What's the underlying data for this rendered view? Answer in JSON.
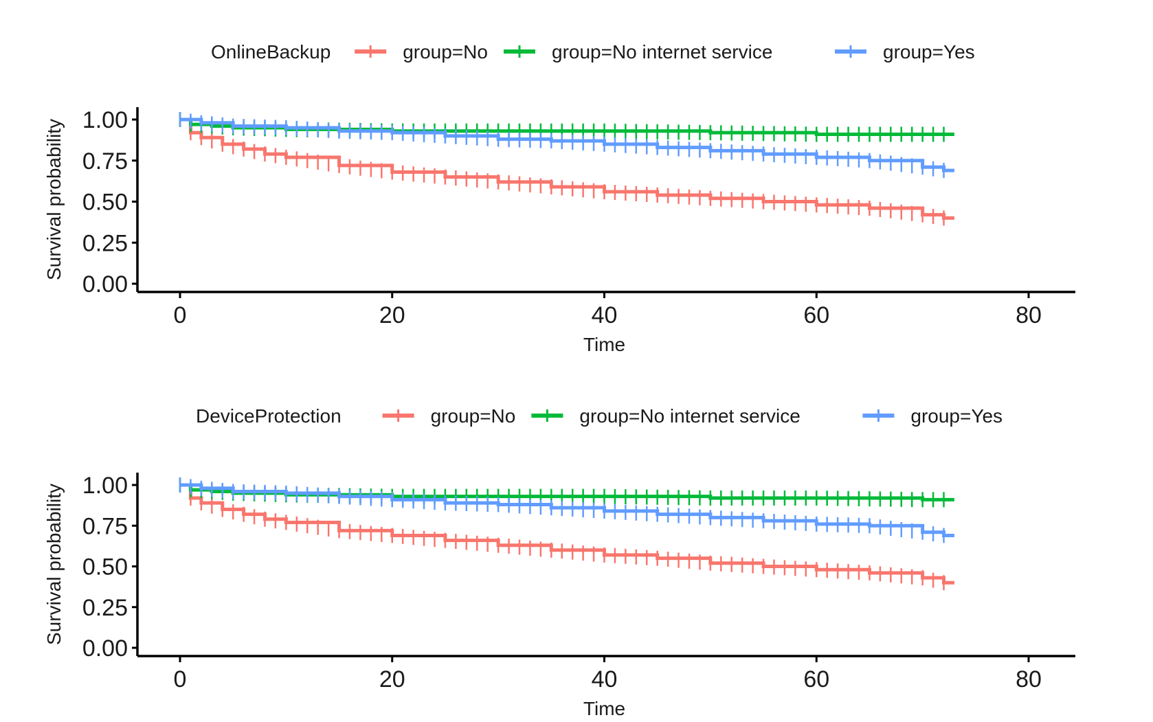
{
  "colors": {
    "No": "#F8766D",
    "No internet service": "#00BA38",
    "Yes": "#619CFF",
    "axis": "#000000"
  },
  "chart_data": [
    {
      "type": "line",
      "legend_title": "OnlineBackup",
      "legend_position": "top",
      "xlabel": "Time",
      "ylabel": "Survival probability",
      "xlim": [
        -4,
        84
      ],
      "ylim": [
        -0.05,
        1.05
      ],
      "xticks": [
        0,
        20,
        40,
        60,
        80
      ],
      "xtick_labels": [
        "0",
        "20",
        "40",
        "60",
        "80"
      ],
      "yticks": [
        0,
        0.25,
        0.5,
        0.75,
        1.0
      ],
      "ytick_labels": [
        "0.00",
        "0.25",
        "0.50",
        "0.75",
        "1.00"
      ],
      "grid": false,
      "series": [
        {
          "name": "group=No",
          "color": "#F8766D",
          "x": [
            0,
            1,
            2,
            4,
            6,
            8,
            10,
            15,
            20,
            25,
            30,
            35,
            40,
            45,
            50,
            55,
            60,
            65,
            70,
            72
          ],
          "y": [
            1.0,
            0.92,
            0.89,
            0.85,
            0.82,
            0.79,
            0.77,
            0.72,
            0.68,
            0.65,
            0.62,
            0.59,
            0.56,
            0.54,
            0.52,
            0.5,
            0.48,
            0.46,
            0.42,
            0.4
          ]
        },
        {
          "name": "group=No internet service",
          "color": "#00BA38",
          "x": [
            0,
            1,
            3,
            5,
            10,
            20,
            30,
            40,
            50,
            60,
            70,
            72
          ],
          "y": [
            1.0,
            0.97,
            0.96,
            0.95,
            0.94,
            0.93,
            0.93,
            0.93,
            0.92,
            0.91,
            0.91,
            0.91
          ]
        },
        {
          "name": "group=Yes",
          "color": "#619CFF",
          "x": [
            0,
            2,
            5,
            10,
            15,
            20,
            25,
            30,
            35,
            40,
            45,
            50,
            55,
            60,
            65,
            70,
            72
          ],
          "y": [
            1.0,
            0.98,
            0.96,
            0.95,
            0.93,
            0.92,
            0.9,
            0.88,
            0.87,
            0.85,
            0.83,
            0.81,
            0.79,
            0.77,
            0.75,
            0.71,
            0.69
          ]
        }
      ]
    },
    {
      "type": "line",
      "legend_title": "DeviceProtection",
      "legend_position": "top",
      "xlabel": "Time",
      "ylabel": "Survival probability",
      "xlim": [
        -4,
        84
      ],
      "ylim": [
        -0.05,
        1.05
      ],
      "xticks": [
        0,
        20,
        40,
        60,
        80
      ],
      "xtick_labels": [
        "0",
        "20",
        "40",
        "60",
        "80"
      ],
      "yticks": [
        0,
        0.25,
        0.5,
        0.75,
        1.0
      ],
      "ytick_labels": [
        "0.00",
        "0.25",
        "0.50",
        "0.75",
        "1.00"
      ],
      "grid": false,
      "series": [
        {
          "name": "group=No",
          "color": "#F8766D",
          "x": [
            0,
            1,
            2,
            4,
            6,
            8,
            10,
            15,
            20,
            25,
            30,
            35,
            40,
            45,
            50,
            55,
            60,
            65,
            70,
            72
          ],
          "y": [
            1.0,
            0.92,
            0.89,
            0.85,
            0.82,
            0.79,
            0.77,
            0.72,
            0.69,
            0.66,
            0.63,
            0.6,
            0.57,
            0.55,
            0.52,
            0.5,
            0.48,
            0.46,
            0.43,
            0.4
          ]
        },
        {
          "name": "group=No internet service",
          "color": "#00BA38",
          "x": [
            0,
            1,
            3,
            5,
            10,
            20,
            30,
            40,
            50,
            60,
            70,
            72
          ],
          "y": [
            1.0,
            0.97,
            0.96,
            0.95,
            0.94,
            0.93,
            0.93,
            0.93,
            0.92,
            0.92,
            0.91,
            0.91
          ]
        },
        {
          "name": "group=Yes",
          "color": "#619CFF",
          "x": [
            0,
            2,
            5,
            10,
            15,
            20,
            25,
            30,
            35,
            40,
            45,
            50,
            55,
            60,
            65,
            70,
            72
          ],
          "y": [
            1.0,
            0.98,
            0.96,
            0.95,
            0.93,
            0.91,
            0.89,
            0.88,
            0.86,
            0.84,
            0.82,
            0.8,
            0.78,
            0.76,
            0.75,
            0.71,
            0.69
          ]
        }
      ]
    }
  ]
}
